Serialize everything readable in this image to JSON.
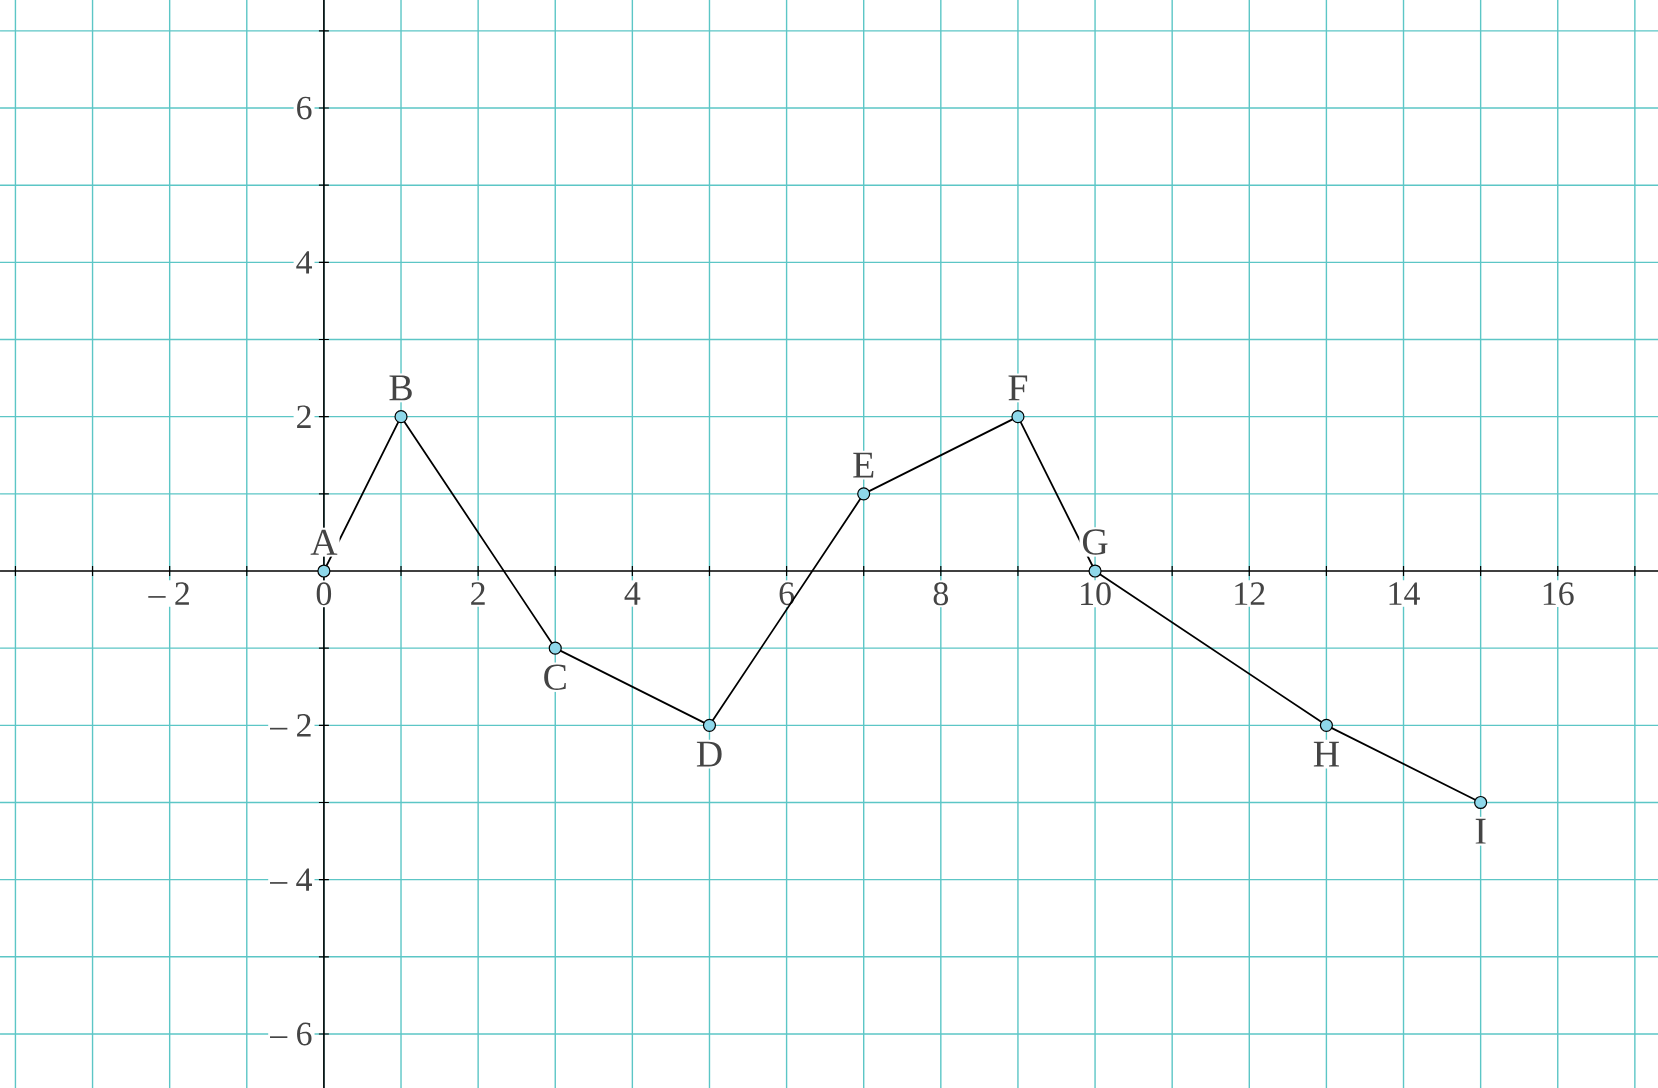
{
  "chart_data": {
    "type": "line",
    "x": [
      0,
      1,
      3,
      5,
      7,
      9,
      10,
      13,
      15
    ],
    "series": [
      {
        "color": "#000000",
        "values": [
          0,
          2,
          -1,
          -2,
          1,
          2,
          0,
          -2,
          -3
        ]
      }
    ],
    "marker": "circle",
    "xlim": [
      -4.2,
      17.3
    ],
    "ylim": [
      -6.7,
      7.4
    ],
    "xticks": [
      {
        "value": -4,
        "label": null
      },
      {
        "value": -3,
        "label": null
      },
      {
        "value": -2,
        "label": "– 2"
      },
      {
        "value": -1,
        "label": null
      },
      0,
      {
        "value": 1,
        "label": null
      },
      2,
      {
        "value": 3,
        "label": null
      },
      4,
      {
        "value": 5,
        "label": null
      },
      6,
      {
        "value": 7,
        "label": null
      },
      8,
      {
        "value": 9,
        "label": null
      },
      10,
      {
        "value": 11,
        "label": null
      },
      12,
      {
        "value": 13,
        "label": null
      },
      14,
      {
        "value": 15,
        "label": null
      },
      16,
      {
        "value": 17,
        "label": null
      }
    ],
    "yticks": [
      {
        "value": -6,
        "label": "– 6"
      },
      {
        "value": -5,
        "label": null
      },
      {
        "value": -4,
        "label": "– 4"
      },
      {
        "value": -3,
        "label": null
      },
      {
        "value": -2,
        "label": "– 2"
      },
      {
        "value": -1,
        "label": null
      },
      {
        "value": 1,
        "label": null
      },
      2,
      {
        "value": 3,
        "label": null
      },
      4,
      {
        "value": 5,
        "label": null
      },
      6,
      {
        "value": 7,
        "label": null
      }
    ],
    "grid": true,
    "annotations": [
      {
        "text": "A",
        "x": 0,
        "y": 0
      },
      {
        "text": "B",
        "x": 1,
        "y": 2
      },
      {
        "text": "C",
        "x": 3,
        "y": -1
      },
      {
        "text": "D",
        "x": 5,
        "y": -2
      },
      {
        "text": "E",
        "x": 7,
        "y": 1
      },
      {
        "text": "F",
        "x": 9,
        "y": 2
      },
      {
        "text": "G",
        "x": 10,
        "y": 0
      },
      {
        "text": "H",
        "x": 13,
        "y": -2
      },
      {
        "text": "I",
        "x": 15,
        "y": -3
      }
    ]
  }
}
